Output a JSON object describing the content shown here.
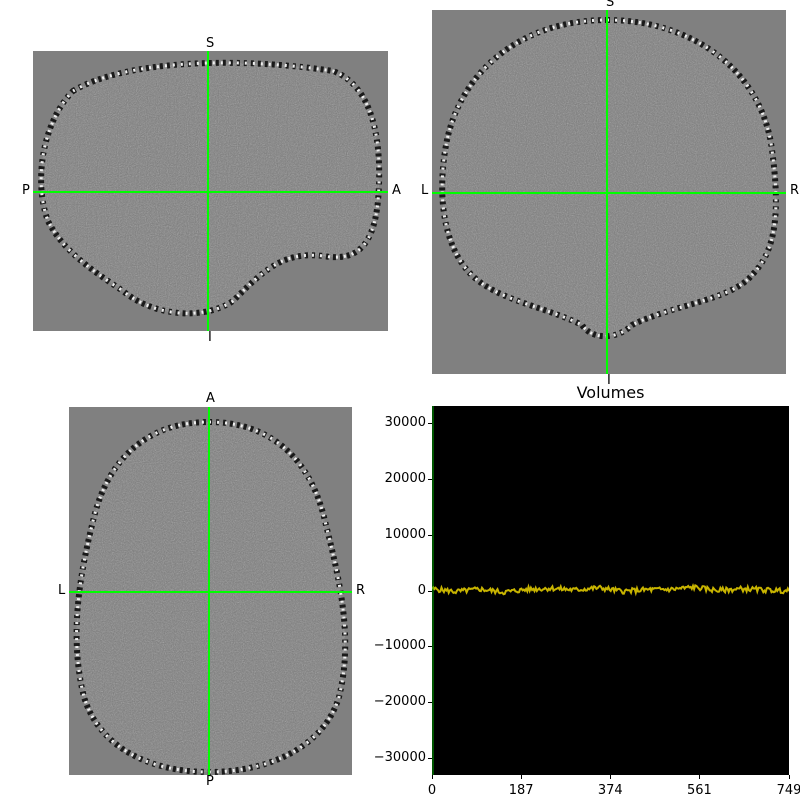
{
  "views": {
    "sagittal": {
      "top": "S",
      "bottom": "I",
      "left": "P",
      "right": "A"
    },
    "coronal": {
      "top": "S",
      "bottom": "I",
      "left": "L",
      "right": "R"
    },
    "axial": {
      "top": "A",
      "bottom": "P",
      "left": "L",
      "right": "R"
    }
  },
  "colors": {
    "crosshair": "#00ff00",
    "trace": "#c8b400",
    "plot_bg": "#000000",
    "view_bg": "#808080"
  },
  "chart_data": {
    "type": "line",
    "title": "Volumes",
    "xlabel": "",
    "ylabel": "",
    "xlim": [
      0,
      749
    ],
    "ylim": [
      -33000,
      33000
    ],
    "xticks": [
      "0",
      "187",
      "374",
      "561",
      "749"
    ],
    "yticks": [
      "30000",
      "20000",
      "10000",
      "0",
      "−10000",
      "−20000",
      "−30000"
    ],
    "series": [
      {
        "x": [
          0,
          50,
          100,
          150,
          200,
          250,
          300,
          350,
          400,
          450,
          500,
          550,
          600,
          650,
          700,
          749
        ],
        "values": [
          300,
          -200,
          250,
          -300,
          200,
          400,
          100,
          500,
          -150,
          150,
          200,
          600,
          0,
          300,
          100,
          -100
        ]
      }
    ]
  }
}
